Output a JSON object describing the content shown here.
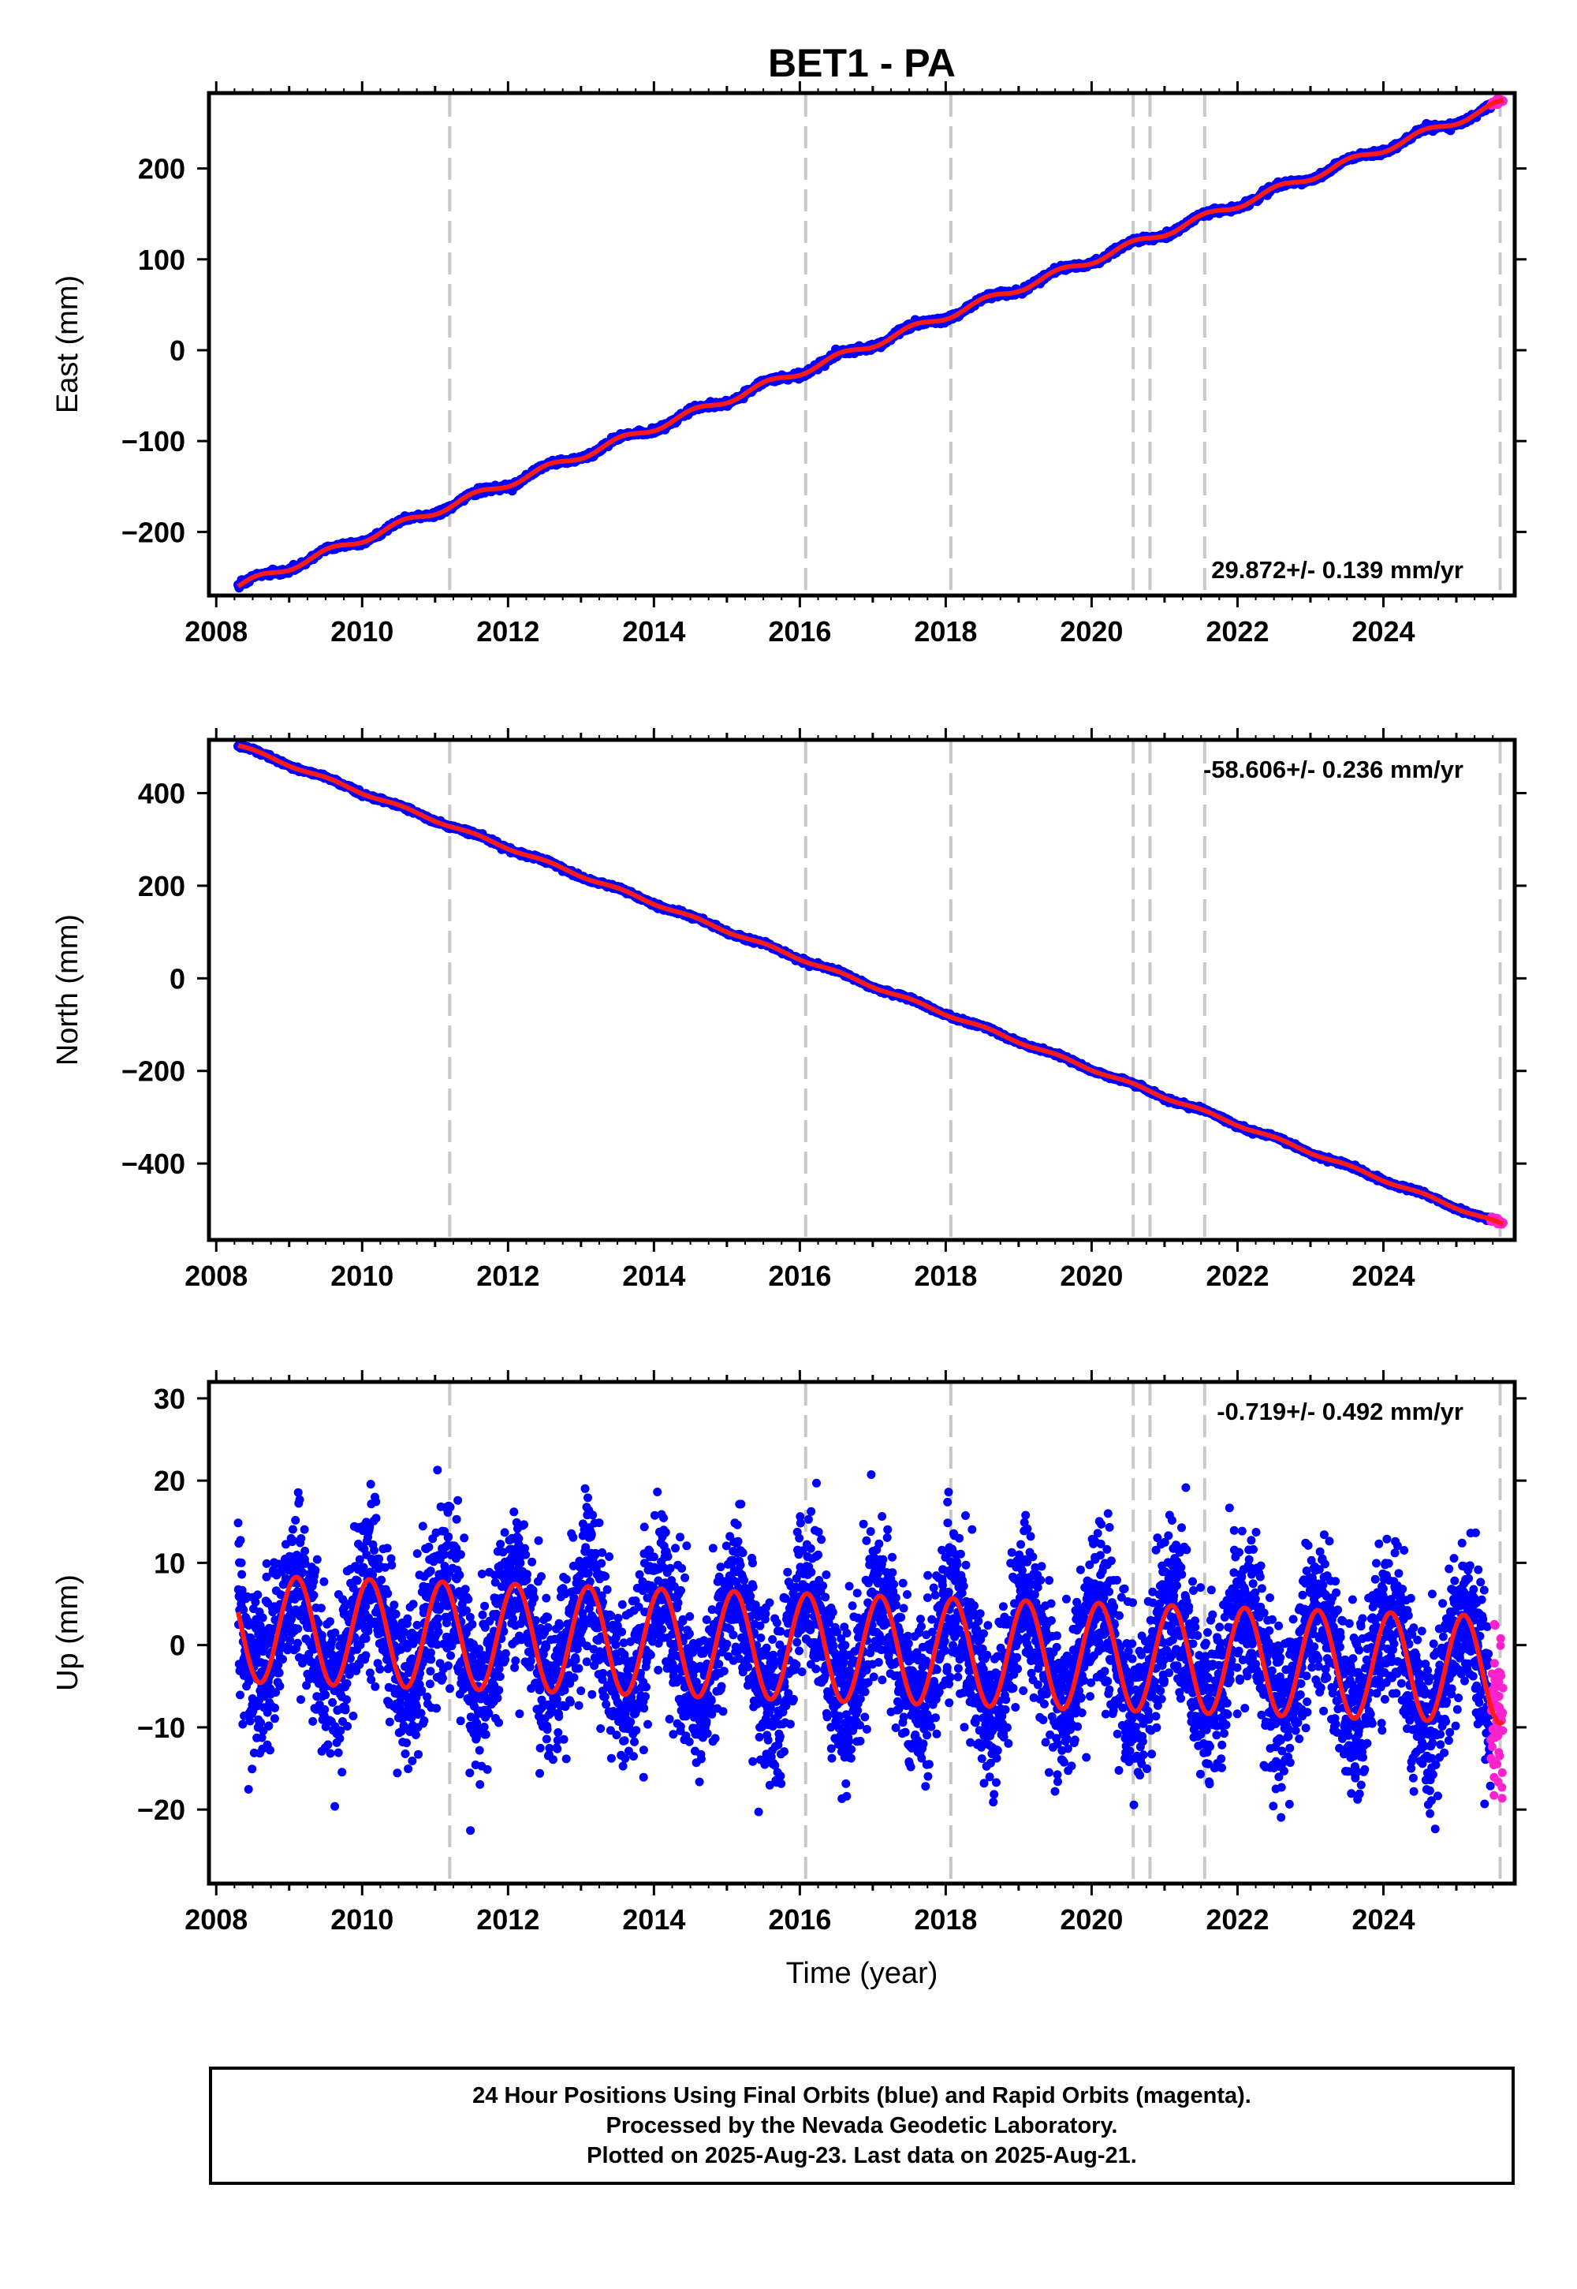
{
  "chart_data": {
    "type": "scatter",
    "title": "BET1 - PA",
    "xlabel": "Time (year)",
    "xlim": [
      2007.9,
      2025.8
    ],
    "x_ticks": [
      2008,
      2010,
      2012,
      2014,
      2016,
      2018,
      2020,
      2022,
      2024
    ],
    "x_tick_labels": [
      "2008",
      "2010",
      "2012",
      "2014",
      "2016",
      "2018",
      "2020",
      "2022",
      "2024"
    ],
    "data_start": 2008.3,
    "data_end": 2025.64,
    "rapid_start": 2025.47,
    "equipment_changes": [
      2011.2,
      2016.08,
      2018.07,
      2020.57,
      2020.8,
      2021.55,
      2025.6
    ],
    "colors": {
      "final": "#0000ff",
      "rapid": "#ff22cc",
      "model": "#ff1a1a",
      "steps": "#c8c8c8"
    },
    "panels": [
      {
        "id": "east",
        "ylabel": "East (mm)",
        "ylim": [
          -270,
          283
        ],
        "y_ticks": [
          -200,
          -100,
          0,
          100,
          200
        ],
        "y_tick_labels": [
          "−200",
          "−100",
          "0",
          "100",
          "200"
        ],
        "rate_label": "29.872+/- 0.139 mm/yr",
        "rate_position": "bottom-right",
        "rate": 29.872,
        "start_value": -260,
        "end_value": 272,
        "annual_amplitude": 4,
        "noise": 1.6
      },
      {
        "id": "north",
        "ylabel": "North (mm)",
        "ylim": [
          -565,
          515
        ],
        "y_ticks": [
          -400,
          -200,
          0,
          200,
          400
        ],
        "y_tick_labels": [
          "−400",
          "−200",
          "0",
          "200",
          "400"
        ],
        "rate_label": "-58.606+/- 0.236 mm/yr",
        "rate_position": "top-right",
        "rate": -58.606,
        "start_value": 503,
        "end_value": -533,
        "annual_amplitude": 3,
        "noise": 2.2
      },
      {
        "id": "up",
        "ylabel": "Up (mm)",
        "ylim": [
          -29,
          32
        ],
        "y_ticks": [
          -20,
          -10,
          0,
          10,
          20,
          30
        ],
        "y_tick_labels": [
          "−20",
          "−10",
          "0",
          "10",
          "20",
          "30"
        ],
        "rate_label": "-0.719+/- 0.492 mm/yr",
        "rate_position": "top-right",
        "rate": -0.719,
        "start_value": 2,
        "end_value": -3,
        "annual_amplitude": 6.5,
        "noise": 4.8,
        "seasonal_phase": 0.45
      }
    ]
  },
  "footer": {
    "line1": "24 Hour Positions Using Final Orbits (blue) and Rapid Orbits (magenta).",
    "line2": "Processed by the Nevada Geodetic Laboratory.",
    "line3": "Plotted on 2025-Aug-23. Last data on 2025-Aug-21."
  }
}
